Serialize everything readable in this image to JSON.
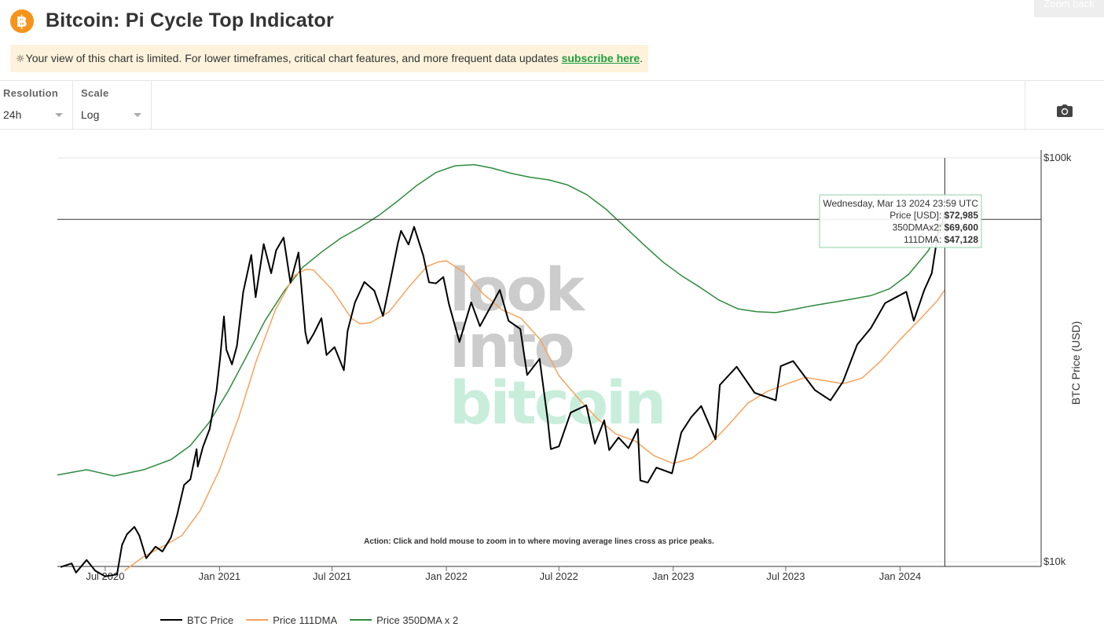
{
  "header": {
    "logo_glyph": "฿",
    "title": "Bitcoin: Pi Cycle Top Indicator",
    "zoom_back_label": "Zoom back"
  },
  "notice": {
    "text": "Your view of this chart is limited. For lower timeframes, critical chart features, and more frequent data updates ",
    "link": "subscribe here",
    "tail": "."
  },
  "controls": {
    "resolution": {
      "label": "Resolution",
      "value": "24h"
    },
    "scale": {
      "label": "Scale",
      "value": "Log"
    }
  },
  "camera": {
    "icon": "camera-icon"
  },
  "colors": {
    "btc": "#000000",
    "dma111": "#f7a35c",
    "dma350x2": "#2e8b3e",
    "watermark_gray": "#cccccc",
    "watermark_green": "#c8eedb",
    "notice_bg": "#fdf3dc",
    "link": "#1e9e3e"
  },
  "chart_data": {
    "type": "line",
    "title": "Bitcoin: Pi Cycle Top Indicator",
    "ylabel": "BTC Price (USD)",
    "y_scale": "log",
    "ylim": [
      10000,
      100000
    ],
    "xlim": [
      "2020-04-15",
      "2024-08-15"
    ],
    "x_ticks": [
      {
        "date": "2020-07-01",
        "label": "Jul 2020"
      },
      {
        "date": "2021-01-01",
        "label": "Jan 2021"
      },
      {
        "date": "2021-07-01",
        "label": "Jul 2021"
      },
      {
        "date": "2022-01-01",
        "label": "Jan 2022"
      },
      {
        "date": "2022-07-01",
        "label": "Jul 2022"
      },
      {
        "date": "2023-01-01",
        "label": "Jan 2023"
      },
      {
        "date": "2023-07-01",
        "label": "Jul 2023"
      },
      {
        "date": "2024-01-01",
        "label": "Jan 2024"
      }
    ],
    "y_ticks": [
      {
        "value": 100000,
        "label": "$100k"
      },
      {
        "value": 10000,
        "label": "$10k"
      }
    ],
    "watermark": [
      "look",
      "into",
      "bitcoin"
    ],
    "annotation": "Action: Click and hold mouse to zoom in to where moving average lines cross as price peaks.",
    "crosshair": {
      "date": "2024-03-13",
      "price": 72985
    },
    "tooltip": {
      "date": "Wednesday, Mar 13 2024 23:59 UTC",
      "rows": [
        {
          "label": "Price [USD]: ",
          "value": "$72,985"
        },
        {
          "label": "350DMAx2: ",
          "value": "$69,600"
        },
        {
          "label": "111DMA: ",
          "value": "$47,128"
        }
      ]
    },
    "legend_position": "bottom-left",
    "series": [
      {
        "name": "BTC Price",
        "color": "#000000",
        "points": [
          [
            "2020-04-20",
            9700
          ],
          [
            "2020-05-08",
            9900
          ],
          [
            "2020-05-15",
            9400
          ],
          [
            "2020-06-01",
            10100
          ],
          [
            "2020-06-15",
            9500
          ],
          [
            "2020-07-01",
            9200
          ],
          [
            "2020-07-20",
            9300
          ],
          [
            "2020-07-28",
            11000
          ],
          [
            "2020-08-05",
            11700
          ],
          [
            "2020-08-17",
            12200
          ],
          [
            "2020-08-25",
            11600
          ],
          [
            "2020-09-05",
            10200
          ],
          [
            "2020-09-20",
            10900
          ],
          [
            "2020-10-01",
            10600
          ],
          [
            "2020-10-15",
            11500
          ],
          [
            "2020-10-25",
            13100
          ],
          [
            "2020-11-05",
            15500
          ],
          [
            "2020-11-15",
            16000
          ],
          [
            "2020-11-25",
            19000
          ],
          [
            "2020-11-27",
            17200
          ],
          [
            "2020-12-05",
            19200
          ],
          [
            "2020-12-16",
            21300
          ],
          [
            "2020-12-27",
            26500
          ],
          [
            "2021-01-02",
            32000
          ],
          [
            "2021-01-08",
            40500
          ],
          [
            "2021-01-12",
            33500
          ],
          [
            "2021-01-21",
            30800
          ],
          [
            "2021-01-29",
            34300
          ],
          [
            "2021-02-08",
            46500
          ],
          [
            "2021-02-21",
            57500
          ],
          [
            "2021-02-28",
            45200
          ],
          [
            "2021-03-13",
            61200
          ],
          [
            "2021-03-25",
            51800
          ],
          [
            "2021-04-02",
            59000
          ],
          [
            "2021-04-14",
            63500
          ],
          [
            "2021-04-25",
            49100
          ],
          [
            "2021-05-08",
            58300
          ],
          [
            "2021-05-12",
            49500
          ],
          [
            "2021-05-19",
            37000
          ],
          [
            "2021-05-23",
            34700
          ],
          [
            "2021-06-01",
            36600
          ],
          [
            "2021-06-14",
            40100
          ],
          [
            "2021-06-22",
            32500
          ],
          [
            "2021-07-05",
            34000
          ],
          [
            "2021-07-20",
            29800
          ],
          [
            "2021-07-26",
            37300
          ],
          [
            "2021-08-07",
            43900
          ],
          [
            "2021-08-22",
            49300
          ],
          [
            "2021-09-07",
            46900
          ],
          [
            "2021-09-21",
            40600
          ],
          [
            "2021-10-01",
            48100
          ],
          [
            "2021-10-15",
            61500
          ],
          [
            "2021-10-20",
            66000
          ],
          [
            "2021-11-01",
            61000
          ],
          [
            "2021-11-10",
            67500
          ],
          [
            "2021-11-25",
            57200
          ],
          [
            "2021-12-04",
            49200
          ],
          [
            "2021-12-15",
            48900
          ],
          [
            "2021-12-27",
            50700
          ],
          [
            "2022-01-05",
            43500
          ],
          [
            "2022-01-22",
            35000
          ],
          [
            "2022-02-10",
            43900
          ],
          [
            "2022-02-24",
            38300
          ],
          [
            "2022-03-28",
            47100
          ],
          [
            "2022-04-11",
            39500
          ],
          [
            "2022-04-30",
            37700
          ],
          [
            "2022-05-11",
            29000
          ],
          [
            "2022-05-31",
            31800
          ],
          [
            "2022-06-13",
            22500
          ],
          [
            "2022-06-18",
            19000
          ],
          [
            "2022-07-01",
            19300
          ],
          [
            "2022-07-20",
            23400
          ],
          [
            "2022-08-14",
            24400
          ],
          [
            "2022-08-28",
            19600
          ],
          [
            "2022-09-12",
            22400
          ],
          [
            "2022-09-20",
            18900
          ],
          [
            "2022-10-05",
            20300
          ],
          [
            "2022-10-21",
            19100
          ],
          [
            "2022-11-05",
            21300
          ],
          [
            "2022-11-09",
            15900
          ],
          [
            "2022-11-21",
            15700
          ],
          [
            "2022-12-05",
            17100
          ],
          [
            "2022-12-30",
            16550
          ],
          [
            "2023-01-14",
            20900
          ],
          [
            "2023-01-30",
            22800
          ],
          [
            "2023-02-15",
            24300
          ],
          [
            "2023-03-10",
            20100
          ],
          [
            "2023-03-17",
            27400
          ],
          [
            "2023-04-13",
            30400
          ],
          [
            "2023-05-12",
            26200
          ],
          [
            "2023-06-15",
            25100
          ],
          [
            "2023-06-23",
            30500
          ],
          [
            "2023-07-13",
            31400
          ],
          [
            "2023-08-17",
            26600
          ],
          [
            "2023-09-11",
            25100
          ],
          [
            "2023-10-01",
            27900
          ],
          [
            "2023-10-24",
            34500
          ],
          [
            "2023-11-15",
            37900
          ],
          [
            "2023-12-08",
            43700
          ],
          [
            "2024-01-11",
            46600
          ],
          [
            "2024-01-23",
            39500
          ],
          [
            "2024-02-09",
            47100
          ],
          [
            "2024-02-21",
            51800
          ],
          [
            "2024-03-04",
            68300
          ],
          [
            "2024-03-08",
            68400
          ],
          [
            "2024-03-13",
            72985
          ]
        ]
      },
      {
        "name": "Price 111DMA",
        "color": "#f7a35c",
        "points": [
          [
            "2020-08-01",
            9500
          ],
          [
            "2020-09-01",
            10300
          ],
          [
            "2020-10-01",
            10900
          ],
          [
            "2020-11-01",
            11600
          ],
          [
            "2020-12-01",
            13400
          ],
          [
            "2021-01-01",
            16900
          ],
          [
            "2021-02-01",
            22800
          ],
          [
            "2021-03-01",
            31400
          ],
          [
            "2021-04-01",
            42100
          ],
          [
            "2021-05-01",
            51100
          ],
          [
            "2021-05-20",
            53000
          ],
          [
            "2021-06-01",
            52800
          ],
          [
            "2021-07-01",
            47200
          ],
          [
            "2021-08-01",
            40100
          ],
          [
            "2021-08-15",
            38800
          ],
          [
            "2021-09-01",
            39100
          ],
          [
            "2021-10-01",
            41600
          ],
          [
            "2021-11-01",
            47800
          ],
          [
            "2021-12-01",
            53900
          ],
          [
            "2021-12-20",
            55300
          ],
          [
            "2022-01-01",
            55600
          ],
          [
            "2022-02-01",
            51800
          ],
          [
            "2022-03-01",
            46100
          ],
          [
            "2022-04-01",
            42000
          ],
          [
            "2022-05-01",
            40100
          ],
          [
            "2022-06-01",
            35500
          ],
          [
            "2022-07-01",
            28900
          ],
          [
            "2022-08-01",
            25400
          ],
          [
            "2022-09-01",
            22600
          ],
          [
            "2022-10-01",
            20700
          ],
          [
            "2022-11-01",
            19900
          ],
          [
            "2022-12-01",
            18300
          ],
          [
            "2023-01-01",
            17500
          ],
          [
            "2023-02-01",
            18100
          ],
          [
            "2023-03-01",
            19500
          ],
          [
            "2023-04-01",
            21900
          ],
          [
            "2023-05-01",
            24700
          ],
          [
            "2023-06-01",
            26400
          ],
          [
            "2023-07-01",
            27500
          ],
          [
            "2023-08-01",
            28600
          ],
          [
            "2023-09-01",
            28100
          ],
          [
            "2023-10-01",
            27600
          ],
          [
            "2023-11-01",
            28500
          ],
          [
            "2023-12-01",
            31400
          ],
          [
            "2024-01-01",
            35500
          ],
          [
            "2024-02-01",
            39700
          ],
          [
            "2024-03-01",
            44300
          ],
          [
            "2024-03-13",
            47128
          ]
        ]
      },
      {
        "name": "Price 350DMA x 2",
        "color": "#2e8b3e",
        "points": [
          [
            "2020-04-15",
            16400
          ],
          [
            "2020-06-01",
            16900
          ],
          [
            "2020-07-15",
            16300
          ],
          [
            "2020-09-01",
            16900
          ],
          [
            "2020-10-15",
            17900
          ],
          [
            "2020-11-15",
            19400
          ],
          [
            "2020-12-15",
            22100
          ],
          [
            "2021-01-15",
            26500
          ],
          [
            "2021-02-15",
            32600
          ],
          [
            "2021-03-15",
            39500
          ],
          [
            "2021-04-15",
            46800
          ],
          [
            "2021-05-15",
            53600
          ],
          [
            "2021-06-15",
            58600
          ],
          [
            "2021-07-15",
            63300
          ],
          [
            "2021-08-15",
            67300
          ],
          [
            "2021-09-15",
            72200
          ],
          [
            "2021-10-15",
            78300
          ],
          [
            "2021-11-15",
            85600
          ],
          [
            "2021-12-15",
            92000
          ],
          [
            "2022-01-15",
            95600
          ],
          [
            "2022-02-15",
            96200
          ],
          [
            "2022-03-15",
            94400
          ],
          [
            "2022-04-15",
            91600
          ],
          [
            "2022-05-15",
            89600
          ],
          [
            "2022-06-15",
            88200
          ],
          [
            "2022-07-15",
            85700
          ],
          [
            "2022-08-15",
            81100
          ],
          [
            "2022-09-15",
            74600
          ],
          [
            "2022-10-15",
            67500
          ],
          [
            "2022-11-15",
            60900
          ],
          [
            "2022-12-15",
            55300
          ],
          [
            "2023-01-15",
            51000
          ],
          [
            "2023-02-15",
            47600
          ],
          [
            "2023-03-15",
            44500
          ],
          [
            "2023-04-15",
            42300
          ],
          [
            "2023-05-15",
            41600
          ],
          [
            "2023-06-15",
            41400
          ],
          [
            "2023-07-15",
            42200
          ],
          [
            "2023-08-15",
            43100
          ],
          [
            "2023-09-15",
            43900
          ],
          [
            "2023-10-15",
            44700
          ],
          [
            "2023-11-15",
            45600
          ],
          [
            "2023-12-15",
            47400
          ],
          [
            "2024-01-15",
            51500
          ],
          [
            "2024-02-15",
            58800
          ],
          [
            "2024-03-13",
            69600
          ]
        ]
      }
    ]
  }
}
